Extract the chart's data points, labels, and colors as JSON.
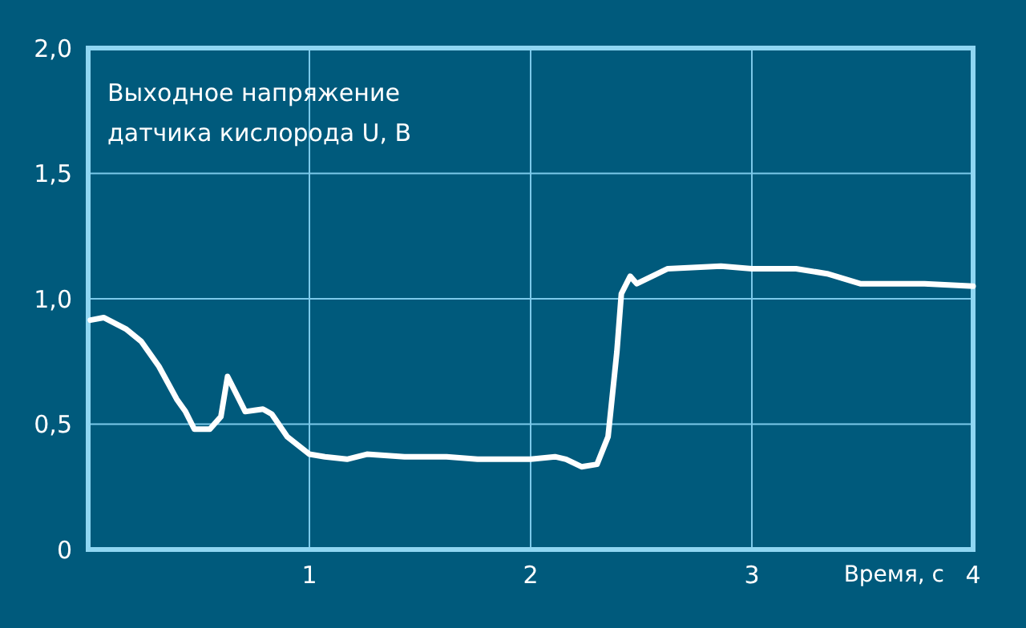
{
  "chart_data": {
    "type": "line",
    "title": "Выходное напряжение\nдатчика кислорода U, В",
    "xlabel": "Время, с",
    "x": [
      0.01,
      0.07,
      0.17,
      0.24,
      0.32,
      0.4,
      0.44,
      0.48,
      0.55,
      0.6,
      0.63,
      0.67,
      0.71,
      0.79,
      0.83,
      0.9,
      1.0,
      1.07,
      1.17,
      1.26,
      1.43,
      1.62,
      1.76,
      1.9,
      2.0,
      2.11,
      2.16,
      2.23,
      2.3,
      2.35,
      2.39,
      2.41,
      2.45,
      2.48,
      2.62,
      2.86,
      3.0,
      3.2,
      3.34,
      3.49,
      3.78,
      4.0
    ],
    "series": [
      {
        "color": "#ffffff",
        "values": [
          0.915,
          0.925,
          0.88,
          0.83,
          0.73,
          0.6,
          0.55,
          0.48,
          0.48,
          0.53,
          0.69,
          0.62,
          0.55,
          0.56,
          0.54,
          0.45,
          0.38,
          0.37,
          0.36,
          0.38,
          0.37,
          0.37,
          0.36,
          0.36,
          0.36,
          0.37,
          0.36,
          0.33,
          0.34,
          0.45,
          0.79,
          1.02,
          1.09,
          1.06,
          1.12,
          1.13,
          1.12,
          1.12,
          1.1,
          1.06,
          1.06,
          1.05
        ]
      }
    ],
    "xlim": [
      0,
      4
    ],
    "xticks": [
      1,
      2,
      3,
      4
    ],
    "ylim": [
      0,
      2
    ],
    "yticks": [
      {
        "value": 0,
        "label": "0"
      },
      {
        "value": 0.5,
        "label": "0,5"
      },
      {
        "value": 1,
        "label": "1,0"
      },
      {
        "value": 1.5,
        "label": "1,5"
      },
      {
        "value": 2,
        "label": "2,0"
      }
    ],
    "grid": true,
    "line_style": "solid",
    "marker": "none"
  }
}
